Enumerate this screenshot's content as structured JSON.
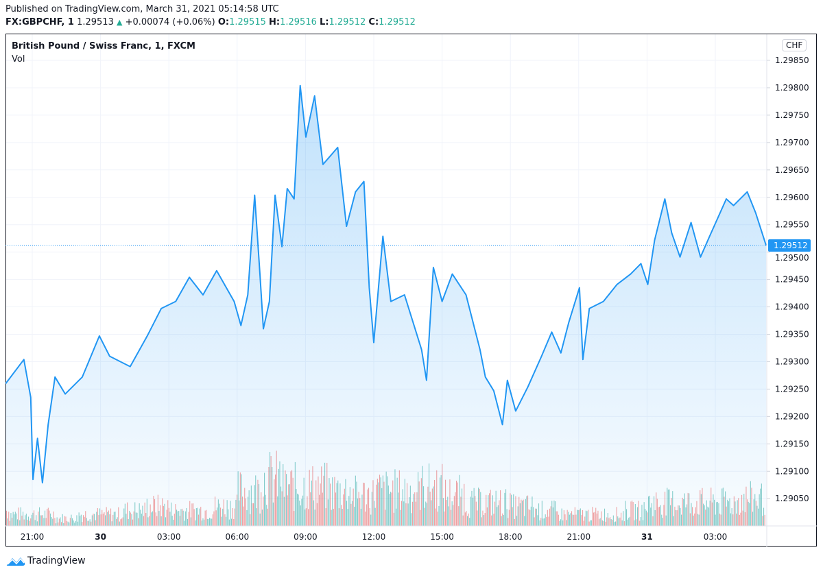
{
  "header": {
    "published": "Published on TradingView.com, March 31, 2021 05:14:58 UTC",
    "symbol": "FX:GBPCHF, 1",
    "last": "1.29513",
    "change": "+0.00074 (+0.06%)",
    "o_label": "O:",
    "o": "1.29515",
    "h_label": "H:",
    "h": "1.29516",
    "l_label": "L:",
    "l": "1.29512",
    "c_label": "C:",
    "c": "1.29512",
    "up_icon": "triangle-up-icon"
  },
  "chart_title": "British Pound / Swiss Franc, 1, FXCM",
  "volume_label": "Vol",
  "currency_button": "CHF",
  "footer_brand": "TradingView",
  "colors": {
    "line": "#2196f3",
    "volume_up": "#26a69a",
    "volume_down": "#ef5350",
    "last_price_bg": "#2196f3",
    "change_up": "#22ab94"
  },
  "chart_data": {
    "type": "area",
    "ylim": [
      1.29,
      1.2988
    ],
    "grid": true,
    "last_price": "1.29512",
    "y_ticks": [
      "1.29850",
      "1.29800",
      "1.29750",
      "1.29700",
      "1.29650",
      "1.29600",
      "1.29550",
      "1.29500",
      "1.29450",
      "1.29400",
      "1.29350",
      "1.29300",
      "1.29250",
      "1.29200",
      "1.29150",
      "1.29100",
      "1.29050"
    ],
    "x_ticks": [
      {
        "t": "29 21:00",
        "label": "21:00",
        "bold": false
      },
      {
        "t": "30 00:00",
        "label": "30",
        "bold": true
      },
      {
        "t": "30 03:00",
        "label": "03:00",
        "bold": false
      },
      {
        "t": "30 06:00",
        "label": "06:00",
        "bold": false
      },
      {
        "t": "30 09:00",
        "label": "09:00",
        "bold": false
      },
      {
        "t": "30 12:00",
        "label": "12:00",
        "bold": false
      },
      {
        "t": "30 15:00",
        "label": "15:00",
        "bold": false
      },
      {
        "t": "30 18:00",
        "label": "18:00",
        "bold": false
      },
      {
        "t": "30 21:00",
        "label": "21:00",
        "bold": false
      },
      {
        "t": "31 00:00",
        "label": "31",
        "bold": true
      },
      {
        "t": "31 03:00",
        "label": "03:00",
        "bold": false
      }
    ],
    "price": [
      [
        "29 19:50",
        1.2926
      ],
      [
        "29 20:38",
        1.29304
      ],
      [
        "29 20:56",
        1.29235
      ],
      [
        "29 21:02",
        1.29085
      ],
      [
        "29 21:14",
        1.2916
      ],
      [
        "29 21:27",
        1.29079
      ],
      [
        "29 21:42",
        1.29185
      ],
      [
        "29 22:00",
        1.29272
      ],
      [
        "29 22:27",
        1.29241
      ],
      [
        "29 23:12",
        1.29272
      ],
      [
        "29 23:57",
        1.29347
      ],
      [
        "30 00:24",
        1.2931
      ],
      [
        "30 01:18",
        1.29291
      ],
      [
        "30 02:03",
        1.29347
      ],
      [
        "30 02:40",
        1.29397
      ],
      [
        "30 03:18",
        1.2941
      ],
      [
        "30 03:54",
        1.29454
      ],
      [
        "30 04:30",
        1.29422
      ],
      [
        "30 05:06",
        1.29466
      ],
      [
        "30 05:52",
        1.2941
      ],
      [
        "30 06:10",
        1.29366
      ],
      [
        "30 06:28",
        1.29422
      ],
      [
        "30 06:46",
        1.29604
      ],
      [
        "30 07:00",
        1.2946
      ],
      [
        "30 07:09",
        1.2936
      ],
      [
        "30 07:25",
        1.2941
      ],
      [
        "30 07:40",
        1.29604
      ],
      [
        "30 07:58",
        1.2951
      ],
      [
        "30 08:12",
        1.29616
      ],
      [
        "30 08:30",
        1.29597
      ],
      [
        "30 08:46",
        1.29804
      ],
      [
        "30 09:01",
        1.2971
      ],
      [
        "30 09:24",
        1.29785
      ],
      [
        "30 09:46",
        1.2966
      ],
      [
        "30 10:25",
        1.29691
      ],
      [
        "30 10:48",
        1.29547
      ],
      [
        "30 11:12",
        1.2961
      ],
      [
        "30 11:34",
        1.29629
      ],
      [
        "30 11:48",
        1.29435
      ],
      [
        "30 12:00",
        1.29335
      ],
      [
        "30 12:24",
        1.29529
      ],
      [
        "30 12:45",
        1.2941
      ],
      [
        "30 13:21",
        1.29422
      ],
      [
        "30 14:06",
        1.29322
      ],
      [
        "30 14:19",
        1.29266
      ],
      [
        "30 14:37",
        1.29472
      ],
      [
        "30 15:00",
        1.2941
      ],
      [
        "30 15:27",
        1.2946
      ],
      [
        "30 16:03",
        1.29422
      ],
      [
        "30 16:40",
        1.29322
      ],
      [
        "30 16:54",
        1.29272
      ],
      [
        "30 17:16",
        1.29247
      ],
      [
        "30 17:39",
        1.29185
      ],
      [
        "30 17:52",
        1.29266
      ],
      [
        "30 18:14",
        1.2921
      ],
      [
        "30 18:46",
        1.29254
      ],
      [
        "30 19:22",
        1.2931
      ],
      [
        "30 19:49",
        1.29354
      ],
      [
        "30 20:13",
        1.29316
      ],
      [
        "30 20:34",
        1.29372
      ],
      [
        "30 21:02",
        1.29435
      ],
      [
        "30 21:11",
        1.29304
      ],
      [
        "30 21:28",
        1.29397
      ],
      [
        "30 22:05",
        1.2941
      ],
      [
        "30 22:41",
        1.29441
      ],
      [
        "30 23:17",
        1.2946
      ],
      [
        "30 23:44",
        1.29479
      ],
      [
        "31 00:02",
        1.29441
      ],
      [
        "31 00:20",
        1.29522
      ],
      [
        "31 00:47",
        1.29597
      ],
      [
        "31 01:05",
        1.29535
      ],
      [
        "31 01:27",
        1.29491
      ],
      [
        "31 01:56",
        1.29554
      ],
      [
        "31 02:21",
        1.29491
      ],
      [
        "31 02:45",
        1.29529
      ],
      [
        "31 03:29",
        1.29597
      ],
      [
        "31 03:48",
        1.29585
      ],
      [
        "31 04:24",
        1.2961
      ],
      [
        "31 04:46",
        1.29572
      ],
      [
        "31 05:14",
        1.29512
      ]
    ],
    "volume_relative_hourly": {
      "start": "29 19:00",
      "levels": [
        0.2,
        0.15,
        0.15,
        0.1,
        0.15,
        0.15,
        0.2,
        0.25,
        0.2,
        0.2,
        0.25,
        0.45,
        0.6,
        0.5,
        0.5,
        0.45,
        0.4,
        0.45,
        0.45,
        0.5,
        0.4,
        0.3,
        0.3,
        0.25,
        0.2,
        0.15,
        0.15,
        0.15,
        0.2,
        0.3,
        0.3,
        0.3,
        0.3,
        0.35
      ]
    }
  }
}
